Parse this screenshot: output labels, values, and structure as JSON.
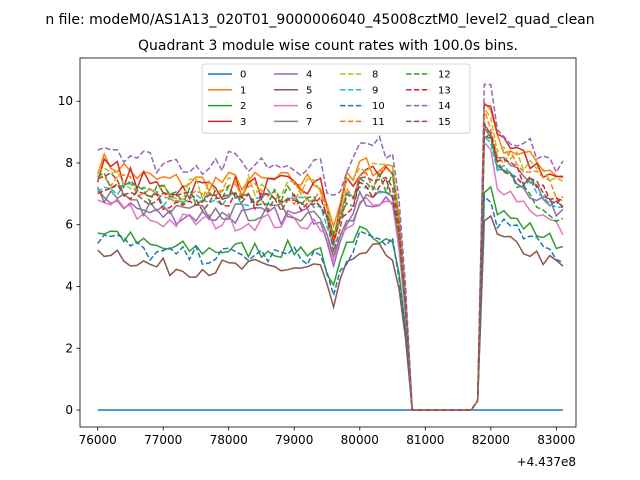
{
  "chart_data": {
    "type": "line",
    "suptitle": "n file: modeM0/AS1A13_020T01_9000006040_45008cztM0_level2_quad_clean",
    "title": "Quadrant 3 module wise count rates with 100.0s bins.",
    "xlabel": "",
    "ylabel": "",
    "x_offset_label": "+4.437e8",
    "xlim": [
      75730,
      83300
    ],
    "ylim": [
      -0.55,
      11.4
    ],
    "xticks": [
      76000,
      77000,
      78000,
      79000,
      80000,
      81000,
      82000,
      83000
    ],
    "xtick_labels": [
      "76000",
      "77000",
      "78000",
      "79000",
      "80000",
      "81000",
      "82000",
      "83000"
    ],
    "yticks": [
      0,
      2,
      4,
      6,
      8,
      10
    ],
    "ytick_labels": [
      "0",
      "2",
      "4",
      "6",
      "8",
      "10"
    ],
    "grid": false,
    "legend": {
      "placement": "top-center",
      "columns": 4
    },
    "x": {
      "start": 76000,
      "step": 100,
      "count": 72
    },
    "series": [
      {
        "name": "0",
        "color": "#1f77b4",
        "dash": "solid",
        "base": 0,
        "anchors": [
          [
            76000,
            0
          ],
          [
            83100,
            0
          ]
        ]
      },
      {
        "name": "1",
        "color": "#ff7f0e",
        "dash": "solid",
        "base": 7.4,
        "post": 9.0,
        "peak": 10.1,
        "endv": 7.6,
        "amp": 0.35
      },
      {
        "name": "2",
        "color": "#2ca02c",
        "dash": "solid",
        "base": 5.2,
        "post": 6.8,
        "peak": 7.4,
        "endv": 5.3,
        "amp": 0.3
      },
      {
        "name": "3",
        "color": "#d62728",
        "dash": "solid",
        "base": 7.2,
        "post": 9.0,
        "peak": 10.2,
        "endv": 7.4,
        "amp": 0.4
      },
      {
        "name": "4",
        "color": "#9467bd",
        "dash": "solid",
        "base": 6.3,
        "post": 8.3,
        "peak": 9.0,
        "endv": 6.3,
        "amp": 0.3
      },
      {
        "name": "5",
        "color": "#8c564b",
        "dash": "solid",
        "base": 4.6,
        "post": 5.9,
        "peak": 6.3,
        "endv": 4.6,
        "amp": 0.3
      },
      {
        "name": "6",
        "color": "#e377c2",
        "dash": "solid",
        "base": 6.1,
        "post": 7.8,
        "peak": 8.7,
        "endv": 5.8,
        "amp": 0.3
      },
      {
        "name": "7",
        "color": "#7f7f7f",
        "dash": "solid",
        "base": 6.4,
        "post": 8.6,
        "peak": 9.2,
        "endv": 6.5,
        "amp": 0.3
      },
      {
        "name": "8",
        "color": "#bcbd22",
        "dash": "dashed",
        "base": 7.2,
        "post": 8.9,
        "peak": 9.6,
        "endv": 7.2,
        "amp": 0.4
      },
      {
        "name": "9",
        "color": "#17becf",
        "dash": "dashed",
        "base": 6.8,
        "post": 8.4,
        "peak": 9.0,
        "endv": 6.6,
        "amp": 0.35
      },
      {
        "name": "10",
        "color": "#1f77b4",
        "dash": "dashed",
        "base": 5.0,
        "post": 6.5,
        "peak": 7.0,
        "endv": 4.9,
        "amp": 0.3
      },
      {
        "name": "11",
        "color": "#ff7f0e",
        "dash": "dashed",
        "base": 7.0,
        "post": 8.8,
        "peak": 9.6,
        "endv": 7.0,
        "amp": 0.35
      },
      {
        "name": "12",
        "color": "#2ca02c",
        "dash": "dashed",
        "base": 6.9,
        "post": 8.3,
        "peak": 8.9,
        "endv": 6.2,
        "amp": 0.35
      },
      {
        "name": "13",
        "color": "#d62728",
        "dash": "dashed",
        "base": 6.7,
        "post": 8.4,
        "peak": 9.1,
        "endv": 6.8,
        "amp": 0.35
      },
      {
        "name": "14",
        "color": "#9467bd",
        "dash": "dashed",
        "base": 8.0,
        "post": 9.6,
        "peak": 10.9,
        "endv": 7.8,
        "amp": 0.4
      },
      {
        "name": "15",
        "color": "#8c564b",
        "dash": "dashed",
        "base": 6.8,
        "post": 8.5,
        "peak": 9.2,
        "endv": 6.8,
        "amp": 0.35
      }
    ],
    "drop_segment": {
      "start": 80800,
      "end": 81800,
      "value": 0
    }
  }
}
